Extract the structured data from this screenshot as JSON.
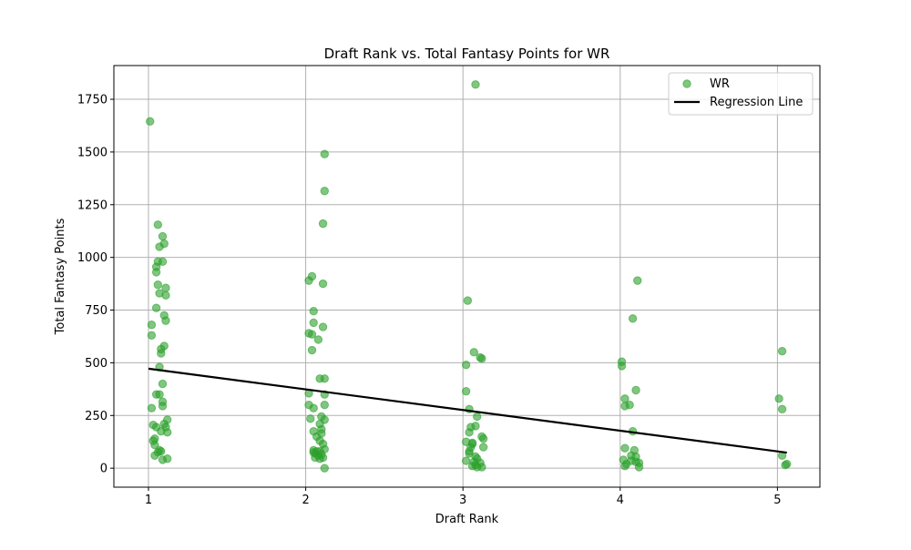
{
  "chart_data": {
    "type": "scatter",
    "title": "Draft Rank vs. Total Fantasy Points for WR",
    "xlabel": "Draft Rank",
    "ylabel": "Total Fantasy Points",
    "xlim": [
      0.78,
      5.27
    ],
    "ylim": [
      -90,
      1910
    ],
    "xticks": [
      1,
      2,
      3,
      4,
      5
    ],
    "yticks": [
      0,
      250,
      500,
      750,
      1000,
      1250,
      1500,
      1750
    ],
    "grid": true,
    "legend_position": "top-right",
    "series": [
      {
        "name": "WR",
        "kind": "scatter",
        "color": "#2ca02c",
        "points": [
          [
            1.01,
            1645
          ],
          [
            1.06,
            1155
          ],
          [
            1.09,
            1100
          ],
          [
            1.1,
            1065
          ],
          [
            1.07,
            1050
          ],
          [
            1.09,
            980
          ],
          [
            1.06,
            980
          ],
          [
            1.05,
            955
          ],
          [
            1.05,
            930
          ],
          [
            1.06,
            870
          ],
          [
            1.11,
            855
          ],
          [
            1.07,
            830
          ],
          [
            1.11,
            820
          ],
          [
            1.05,
            760
          ],
          [
            1.1,
            725
          ],
          [
            1.11,
            700
          ],
          [
            1.02,
            680
          ],
          [
            1.02,
            630
          ],
          [
            1.1,
            580
          ],
          [
            1.08,
            565
          ],
          [
            1.08,
            545
          ],
          [
            1.07,
            480
          ],
          [
            1.09,
            400
          ],
          [
            1.05,
            350
          ],
          [
            1.07,
            350
          ],
          [
            1.09,
            315
          ],
          [
            1.09,
            295
          ],
          [
            1.02,
            285
          ],
          [
            1.12,
            230
          ],
          [
            1.03,
            205
          ],
          [
            1.1,
            210
          ],
          [
            1.05,
            195
          ],
          [
            1.11,
            195
          ],
          [
            1.08,
            175
          ],
          [
            1.12,
            170
          ],
          [
            1.04,
            140
          ],
          [
            1.03,
            130
          ],
          [
            1.04,
            110
          ],
          [
            1.07,
            85
          ],
          [
            1.08,
            80
          ],
          [
            1.06,
            75
          ],
          [
            1.04,
            60
          ],
          [
            1.12,
            45
          ],
          [
            1.09,
            40
          ],
          [
            2.12,
            1490
          ],
          [
            2.12,
            1315
          ],
          [
            2.11,
            1160
          ],
          [
            2.04,
            910
          ],
          [
            2.02,
            890
          ],
          [
            2.11,
            875
          ],
          [
            2.05,
            745
          ],
          [
            2.05,
            690
          ],
          [
            2.11,
            670
          ],
          [
            2.02,
            640
          ],
          [
            2.04,
            635
          ],
          [
            2.08,
            610
          ],
          [
            2.04,
            560
          ],
          [
            2.09,
            425
          ],
          [
            2.12,
            425
          ],
          [
            2.02,
            355
          ],
          [
            2.12,
            350
          ],
          [
            2.02,
            300
          ],
          [
            2.12,
            300
          ],
          [
            2.05,
            285
          ],
          [
            2.1,
            245
          ],
          [
            2.03,
            235
          ],
          [
            2.12,
            230
          ],
          [
            2.09,
            210
          ],
          [
            2.1,
            185
          ],
          [
            2.05,
            175
          ],
          [
            2.1,
            165
          ],
          [
            2.07,
            150
          ],
          [
            2.09,
            130
          ],
          [
            2.11,
            115
          ],
          [
            2.12,
            90
          ],
          [
            2.05,
            85
          ],
          [
            2.07,
            80
          ],
          [
            2.09,
            80
          ],
          [
            2.05,
            75
          ],
          [
            2.06,
            70
          ],
          [
            2.1,
            65
          ],
          [
            2.08,
            60
          ],
          [
            2.06,
            50
          ],
          [
            2.11,
            50
          ],
          [
            2.09,
            45
          ],
          [
            2.12,
            0
          ],
          [
            3.08,
            1820
          ],
          [
            3.03,
            795
          ],
          [
            3.07,
            550
          ],
          [
            3.11,
            525
          ],
          [
            3.12,
            520
          ],
          [
            3.02,
            490
          ],
          [
            3.02,
            365
          ],
          [
            3.04,
            280
          ],
          [
            3.09,
            245
          ],
          [
            3.08,
            200
          ],
          [
            3.05,
            195
          ],
          [
            3.04,
            170
          ],
          [
            3.12,
            150
          ],
          [
            3.13,
            140
          ],
          [
            3.02,
            125
          ],
          [
            3.06,
            120
          ],
          [
            3.06,
            115
          ],
          [
            3.05,
            100
          ],
          [
            3.13,
            100
          ],
          [
            3.04,
            80
          ],
          [
            3.04,
            70
          ],
          [
            3.08,
            55
          ],
          [
            3.09,
            45
          ],
          [
            3.02,
            35
          ],
          [
            3.07,
            30
          ],
          [
            3.11,
            25
          ],
          [
            3.08,
            15
          ],
          [
            3.06,
            10
          ],
          [
            3.09,
            5
          ],
          [
            3.12,
            5
          ],
          [
            4.11,
            890
          ],
          [
            4.08,
            710
          ],
          [
            4.01,
            505
          ],
          [
            4.01,
            485
          ],
          [
            4.1,
            370
          ],
          [
            4.03,
            330
          ],
          [
            4.06,
            300
          ],
          [
            4.03,
            295
          ],
          [
            4.08,
            175
          ],
          [
            4.03,
            95
          ],
          [
            4.09,
            85
          ],
          [
            4.07,
            60
          ],
          [
            4.1,
            55
          ],
          [
            4.02,
            40
          ],
          [
            4.07,
            35
          ],
          [
            4.1,
            30
          ],
          [
            4.12,
            25
          ],
          [
            4.04,
            20
          ],
          [
            4.03,
            10
          ],
          [
            4.12,
            5
          ],
          [
            5.03,
            555
          ],
          [
            5.01,
            330
          ],
          [
            5.03,
            280
          ],
          [
            5.03,
            60
          ],
          [
            5.06,
            20
          ],
          [
            5.05,
            15
          ]
        ]
      },
      {
        "name": "Regression Line",
        "kind": "line",
        "color": "#000000",
        "x": [
          1.0,
          5.06
        ],
        "y": [
          472,
          74
        ]
      }
    ]
  }
}
